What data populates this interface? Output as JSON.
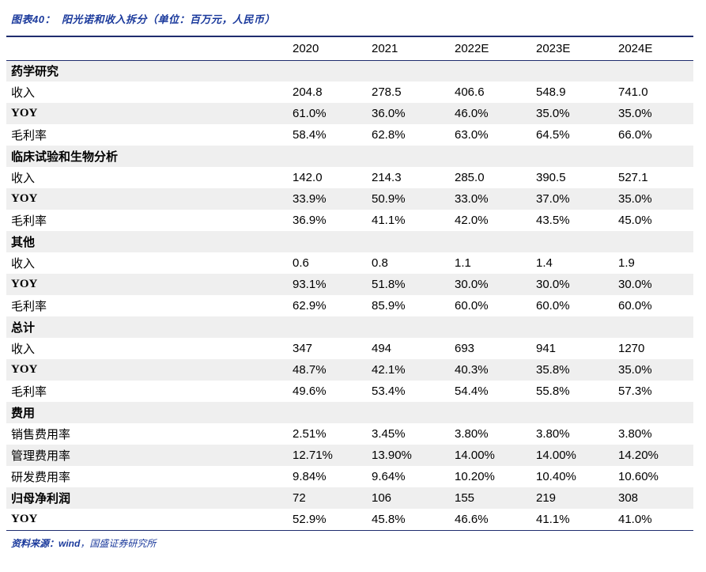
{
  "colors": {
    "accent_blue": "#1b3a9c",
    "border_navy": "#1f2d6e",
    "row_shade": "#efefef"
  },
  "header": {
    "figure_label": "图表40：",
    "title": "阳光诺和收入拆分（单位：百万元，人民币）"
  },
  "chart_data": {
    "type": "table",
    "title": "阳光诺和收入拆分（单位：百万元，人民币）",
    "columns": [
      "",
      "2020",
      "2021",
      "2022E",
      "2023E",
      "2024E"
    ],
    "rows": [
      {
        "label": "药学研究",
        "section": true,
        "values": [
          "",
          "",
          "",
          "",
          ""
        ]
      },
      {
        "label": "收入",
        "values": [
          "204.8",
          "278.5",
          "406.6",
          "548.9",
          "741.0"
        ]
      },
      {
        "label": "YOY",
        "bold": true,
        "values": [
          "61.0%",
          "36.0%",
          "46.0%",
          "35.0%",
          "35.0%"
        ]
      },
      {
        "label": "毛利率",
        "values": [
          "58.4%",
          "62.8%",
          "63.0%",
          "64.5%",
          "66.0%"
        ]
      },
      {
        "label": "临床试验和生物分析",
        "section": true,
        "values": [
          "",
          "",
          "",
          "",
          ""
        ]
      },
      {
        "label": "收入",
        "values": [
          "142.0",
          "214.3",
          "285.0",
          "390.5",
          "527.1"
        ]
      },
      {
        "label": "YOY",
        "bold": true,
        "values": [
          "33.9%",
          "50.9%",
          "33.0%",
          "37.0%",
          "35.0%"
        ]
      },
      {
        "label": "毛利率",
        "values": [
          "36.9%",
          "41.1%",
          "42.0%",
          "43.5%",
          "45.0%"
        ]
      },
      {
        "label": "其他",
        "section": true,
        "values": [
          "",
          "",
          "",
          "",
          ""
        ]
      },
      {
        "label": "收入",
        "values": [
          "0.6",
          "0.8",
          "1.1",
          "1.4",
          "1.9"
        ]
      },
      {
        "label": "YOY",
        "bold": true,
        "values": [
          "93.1%",
          "51.8%",
          "30.0%",
          "30.0%",
          "30.0%"
        ]
      },
      {
        "label": "毛利率",
        "values": [
          "62.9%",
          "85.9%",
          "60.0%",
          "60.0%",
          "60.0%"
        ]
      },
      {
        "label": "总计",
        "section": true,
        "values": [
          "",
          "",
          "",
          "",
          ""
        ]
      },
      {
        "label": "收入",
        "values": [
          "347",
          "494",
          "693",
          "941",
          "1270"
        ]
      },
      {
        "label": "YOY",
        "bold": true,
        "values": [
          "48.7%",
          "42.1%",
          "40.3%",
          "35.8%",
          "35.0%"
        ]
      },
      {
        "label": "毛利率",
        "values": [
          "49.6%",
          "53.4%",
          "54.4%",
          "55.8%",
          "57.3%"
        ]
      },
      {
        "label": "费用",
        "section": true,
        "values": [
          "",
          "",
          "",
          "",
          ""
        ]
      },
      {
        "label": "销售费用率",
        "values": [
          "2.51%",
          "3.45%",
          "3.80%",
          "3.80%",
          "3.80%"
        ]
      },
      {
        "label": "管理费用率",
        "values": [
          "12.71%",
          "13.90%",
          "14.00%",
          "14.00%",
          "14.20%"
        ]
      },
      {
        "label": "研发费用率",
        "values": [
          "9.84%",
          "9.64%",
          "10.20%",
          "10.40%",
          "10.60%"
        ]
      },
      {
        "label": "归母净利润",
        "bold": true,
        "values": [
          "72",
          "106",
          "155",
          "219",
          "308"
        ]
      },
      {
        "label": "YOY",
        "bold": true,
        "values": [
          "52.9%",
          "45.8%",
          "46.6%",
          "41.1%",
          "41.0%"
        ]
      }
    ]
  },
  "footer": {
    "label": "资料来源：",
    "source_emphasis": "wind",
    "source_rest": "，国盛证券研究所"
  }
}
